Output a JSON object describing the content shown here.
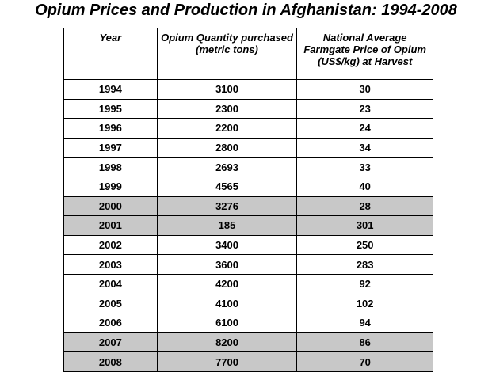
{
  "title": "Opium Prices and Production in Afghanistan: 1994-2008",
  "table": {
    "header": [
      "Year",
      "Opium Quantity purchased (metric tons)",
      "National Average Farmgate Price of Opium (US$/kg) at Harvest"
    ],
    "rows": [
      [
        1994,
        3100,
        30
      ],
      [
        1995,
        2300,
        23
      ],
      [
        1996,
        2200,
        24
      ],
      [
        1997,
        2800,
        34
      ],
      [
        1998,
        2693,
        33
      ],
      [
        1999,
        4565,
        40
      ],
      [
        2000,
        3276,
        28
      ],
      [
        2001,
        185,
        301
      ],
      [
        2002,
        3400,
        250
      ],
      [
        2003,
        3600,
        283
      ],
      [
        2004,
        4200,
        92
      ],
      [
        2005,
        4100,
        102
      ],
      [
        2006,
        6100,
        94
      ],
      [
        2007,
        8200,
        86
      ],
      [
        2008,
        7700,
        70
      ]
    ]
  }
}
